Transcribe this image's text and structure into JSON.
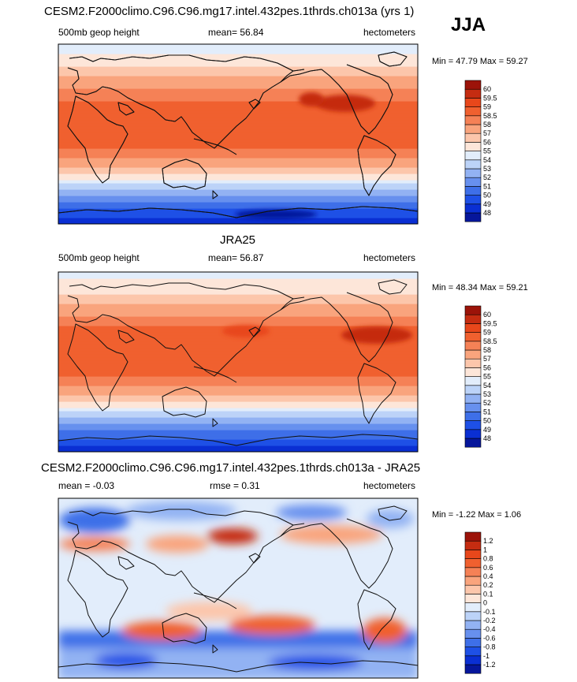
{
  "season": "JJA",
  "units": "hectometers",
  "chart_data": [
    {
      "type": "heatmap",
      "title": "CESM2.F2000climo.C96.C96.mg17.intel.432pes.1thrds.ch013a (yrs 1)",
      "variable": "500mb geop height",
      "mean_label": "mean=",
      "mean": "56.84",
      "units": "hectometers",
      "min_label": "Min =",
      "min": "47.79",
      "max_label": "Max =",
      "max": "59.27",
      "levels": [
        "48",
        "49",
        "50",
        "51",
        "52",
        "53",
        "54",
        "55",
        "56",
        "57",
        "58",
        "58.5",
        "59",
        "59.5",
        "60"
      ],
      "colors": [
        "#06169b",
        "#0a2fd3",
        "#1e50e6",
        "#3e6fe8",
        "#6790ee",
        "#92b2f3",
        "#bcd3f8",
        "#e2edfb",
        "#fde6d9",
        "#fcc6ab",
        "#f9a47d",
        "#f58156",
        "#f0602f",
        "#e8471b",
        "#c52c11",
        "#9c1309"
      ],
      "profile": [
        48.4,
        49.6,
        51.2,
        53.0,
        55.0,
        56.8,
        58.2,
        58.6,
        58.8,
        58.9,
        58.8,
        58.5,
        58.0,
        57.2,
        56.1,
        55.2,
        54.6
      ]
    },
    {
      "type": "heatmap",
      "title": "JRA25",
      "variable": "500mb geop height",
      "mean_label": "mean=",
      "mean": "56.87",
      "units": "hectometers",
      "min_label": "Min =",
      "min": "48.34",
      "max_label": "Max =",
      "max": "59.21",
      "levels": [
        "48",
        "49",
        "50",
        "51",
        "52",
        "53",
        "54",
        "55",
        "56",
        "57",
        "58",
        "58.5",
        "59",
        "59.5",
        "60"
      ],
      "colors": [
        "#06169b",
        "#0a2fd3",
        "#1e50e6",
        "#3e6fe8",
        "#6790ee",
        "#92b2f3",
        "#bcd3f8",
        "#e2edfb",
        "#fde6d9",
        "#fcc6ab",
        "#f9a47d",
        "#f58156",
        "#f0602f",
        "#e8471b",
        "#c52c11",
        "#9c1309"
      ],
      "profile": [
        48.6,
        49.8,
        51.3,
        53.1,
        55.1,
        56.9,
        58.2,
        58.6,
        58.8,
        58.9,
        58.8,
        58.6,
        58.1,
        57.3,
        56.2,
        55.3,
        54.7
      ]
    },
    {
      "type": "heatmap",
      "title": "CESM2.F2000climo.C96.C96.mg17.intel.432pes.1thrds.ch013a - JRA25",
      "mean_label": "mean =",
      "mean": "-0.03",
      "rmse_label": "rmse =",
      "rmse": "0.31",
      "units": "hectometers",
      "min_label": "Min =",
      "min": "-1.22",
      "max_label": "Max =",
      "max": "1.06",
      "levels": [
        "-1.2",
        "-1",
        "-0.8",
        "-0.6",
        "-0.4",
        "-0.2",
        "-0.1",
        "0",
        "0.1",
        "0.2",
        "0.4",
        "0.6",
        "0.8",
        "1",
        "1.2"
      ],
      "colors": [
        "#06169b",
        "#0a2fd3",
        "#1e50e6",
        "#3e6fe8",
        "#6790ee",
        "#92b2f3",
        "#bcd3f8",
        "#e2edfb",
        "#fde6d9",
        "#fcc6ab",
        "#f9a47d",
        "#f58156",
        "#f0602f",
        "#e8471b",
        "#c52c11",
        "#9c1309"
      ]
    }
  ]
}
